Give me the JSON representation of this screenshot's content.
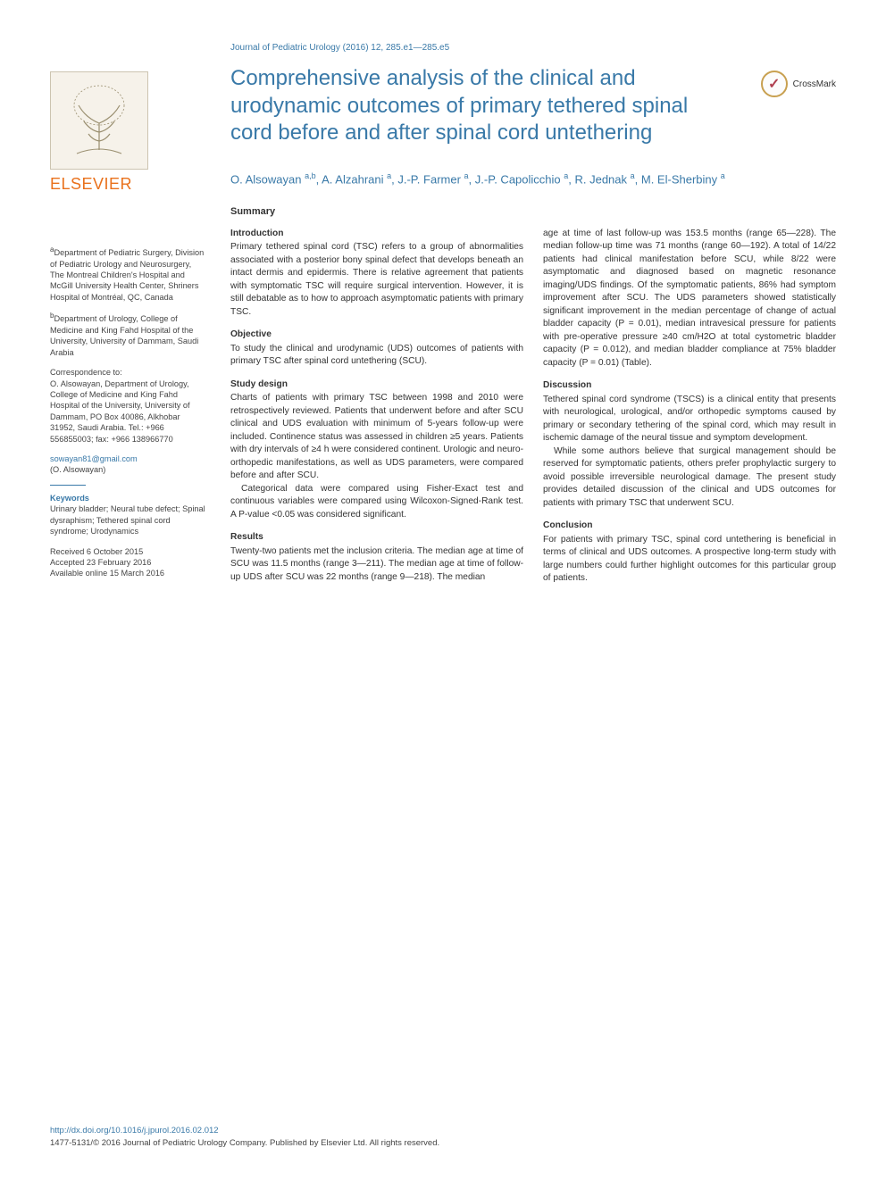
{
  "journal_ref": "Journal of Pediatric Urology (2016) 12, 285.e1—285.e5",
  "title": "Comprehensive analysis of the clinical and urodynamic outcomes of primary tethered spinal cord before and after spinal cord untethering",
  "crossmark_label": "CrossMark",
  "elsevier_label": "ELSEVIER",
  "authors_html": "O. Alsowayan <sup>a,b</sup>, A. Alzahrani <sup>a</sup>, J.-P. Farmer <sup>a</sup>, J.-P. Capolicchio <sup>a</sup>, R. Jednak <sup>a</sup>, M. El-Sherbiny <sup>a</sup>",
  "sidebar": {
    "aff_a_label": "a",
    "aff_a": "Department of Pediatric Surgery, Division of Pediatric Urology and Neurosurgery, The Montreal Children's Hospital and McGill University Health Center, Shriners Hospital of Montréal, QC, Canada",
    "aff_b_label": "b",
    "aff_b": "Department of Urology, College of Medicine and King Fahd Hospital of the University, University of Dammam, Saudi Arabia",
    "corr_label": "Correspondence to:",
    "corr": "O. Alsowayan, Department of Urology, College of Medicine and King Fahd Hospital of the University, University of Dammam, PO Box 40086, Alkhobar 31952, Saudi Arabia. Tel.: +966 556855003; fax: +966 138966770",
    "email": "sowayan81@gmail.com",
    "email_name": "(O. Alsowayan)",
    "kw_label": "Keywords",
    "kw": "Urinary bladder; Neural tube defect; Spinal dysraphism; Tethered spinal cord syndrome; Urodynamics",
    "dates": "Received 6 October 2015\nAccepted 23 February 2016\nAvailable online 15 March 2016"
  },
  "summary_label": "Summary",
  "sections": {
    "intro_h": "Introduction",
    "intro": "Primary tethered spinal cord (TSC) refers to a group of abnormalities associated with a posterior bony spinal defect that develops beneath an intact dermis and epidermis. There is relative agreement that patients with symptomatic TSC will require surgical intervention. However, it is still debatable as to how to approach asymptomatic patients with primary TSC.",
    "obj_h": "Objective",
    "obj": "To study the clinical and urodynamic (UDS) outcomes of patients with primary TSC after spinal cord untethering (SCU).",
    "design_h": "Study design",
    "design1": "Charts of patients with primary TSC between 1998 and 2010 were retrospectively reviewed. Patients that underwent before and after SCU clinical and UDS evaluation with minimum of 5-years follow-up were included. Continence status was assessed in children ≥5 years. Patients with dry intervals of ≥4 h were considered continent. Urologic and neuro-orthopedic manifestations, as well as UDS parameters, were compared before and after SCU.",
    "design2": "Categorical data were compared using Fisher-Exact test and continuous variables were compared using Wilcoxon-Signed-Rank test. A P-value <0.05 was considered significant.",
    "results_h": "Results",
    "results1": "Twenty-two patients met the inclusion criteria. The median age at time of SCU was 11.5 months (range 3—211). The median age at time of follow-up UDS after SCU was 22 months (range 9—218). The median",
    "results2": "age at time of last follow-up was 153.5 months (range 65—228). The median follow-up time was 71 months (range 60—192). A total of 14/22 patients had clinical manifestation before SCU, while 8/22 were asymptomatic and diagnosed based on magnetic resonance imaging/UDS findings. Of the symptomatic patients, 86% had symptom improvement after SCU. The UDS parameters showed statistically significant improvement in the median percentage of change of actual bladder capacity (P = 0.01), median intravesical pressure for patients with pre-operative pressure ≥40 cm/H2O at total cystometric bladder capacity (P = 0.012), and median bladder compliance at 75% bladder capacity (P = 0.01) (Table).",
    "disc_h": "Discussion",
    "disc1": "Tethered spinal cord syndrome (TSCS) is a clinical entity that presents with neurological, urological, and/or orthopedic symptoms caused by primary or secondary tethering of the spinal cord, which may result in ischemic damage of the neural tissue and symptom development.",
    "disc2": "While some authors believe that surgical management should be reserved for symptomatic patients, others prefer prophylactic surgery to avoid possible irreversible neurological damage. The present study provides detailed discussion of the clinical and UDS outcomes for patients with primary TSC that underwent SCU.",
    "concl_h": "Conclusion",
    "concl": "For patients with primary TSC, spinal cord untethering is beneficial in terms of clinical and UDS outcomes. A prospective long-term study with large numbers could further highlight outcomes for this particular group of patients."
  },
  "footer": {
    "doi": "http://dx.doi.org/10.1016/j.jpurol.2016.02.012",
    "copy": "1477-5131/© 2016 Journal of Pediatric Urology Company. Published by Elsevier Ltd. All rights reserved."
  },
  "colors": {
    "accent": "#3979a8",
    "orange": "#e9711c",
    "text": "#333333"
  }
}
